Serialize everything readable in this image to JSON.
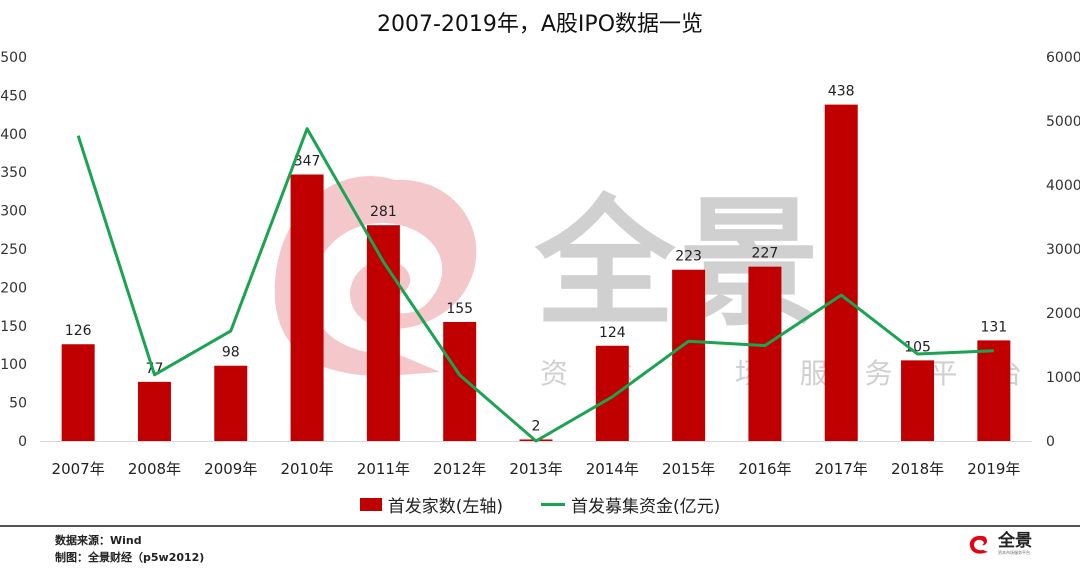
{
  "title": "2007-2019年，A股IPO数据一览",
  "colors": {
    "bar": "#c00000",
    "line": "#1aa351",
    "axis": "#d9d9d9",
    "watermark_red": "#f4c7cb",
    "watermark_gray": "#d0d0d0"
  },
  "legend": {
    "bar_label": "首发家数(左轴)",
    "line_label": "首发募集资金(亿元)"
  },
  "watermark": {
    "brand": "全景",
    "tagline": "资 本 市 场 服 务 平 台"
  },
  "footer": {
    "source": "数据来源：Wind",
    "author": "制图：全景财经（p5w2012)",
    "logo_text": "全景",
    "logo_sub": "资本市场服务平台"
  },
  "chart_data": {
    "type": "bar+line",
    "title": "2007-2019年，A股IPO数据一览",
    "categories": [
      "2007年",
      "2008年",
      "2009年",
      "2010年",
      "2011年",
      "2012年",
      "2013年",
      "2014年",
      "2015年",
      "2016年",
      "2017年",
      "2018年",
      "2019年"
    ],
    "series": [
      {
        "name": "首发家数(左轴)",
        "type": "bar",
        "axis": "left",
        "values": [
          126,
          77,
          98,
          347,
          281,
          155,
          2,
          124,
          223,
          227,
          438,
          105,
          131
        ]
      },
      {
        "name": "首发募集资金(亿元)",
        "type": "line",
        "axis": "right",
        "values": [
          4770,
          1034,
          1720,
          4880,
          2800,
          1030,
          0,
          690,
          1560,
          1490,
          2280,
          1360,
          1410
        ]
      }
    ],
    "y_left": {
      "min": 0,
      "max": 500,
      "ticks": [
        0,
        50,
        100,
        150,
        200,
        250,
        300,
        350,
        400,
        450,
        500
      ]
    },
    "y_right": {
      "min": 0,
      "max": 6000,
      "ticks": [
        0,
        1000,
        2000,
        3000,
        4000,
        5000,
        6000
      ]
    },
    "xlabel": "",
    "ylabel": "",
    "grid": false,
    "legend_position": "bottom"
  }
}
